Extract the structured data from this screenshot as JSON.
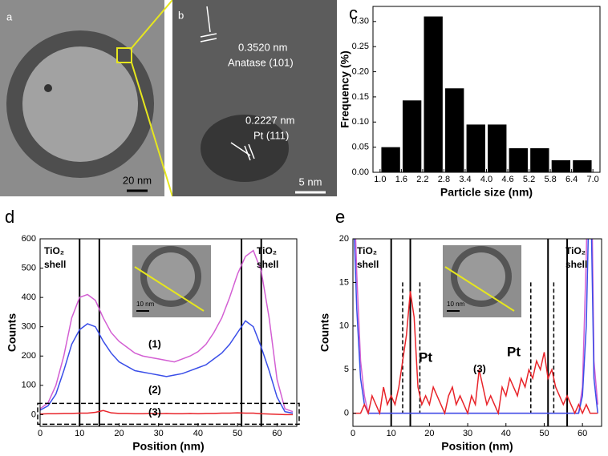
{
  "panels": {
    "a": {
      "label": "a",
      "scale_bar": "20 nm"
    },
    "b": {
      "label": "b",
      "spacing_1": "0.3520 nm",
      "plane_1": "Anatase (101)",
      "spacing_2": "0.2227 nm",
      "plane_2": "Pt (111)",
      "scale_bar": "5 nm"
    }
  },
  "chart_data": [
    {
      "type": "histogram",
      "label": "c",
      "x_label": "Particle size (nm)",
      "y_label": "Frequency (%)",
      "color": "#000000",
      "bins": [
        1.0,
        1.6,
        2.2,
        2.8,
        3.4,
        4.0,
        4.6,
        5.2,
        5.8,
        6.4,
        7.0
      ],
      "values": [
        0.05,
        0.143,
        0.31,
        0.167,
        0.095,
        0.095,
        0.048,
        0.048,
        0.024,
        0.024
      ],
      "xlim": [
        0.8,
        7.2
      ],
      "ylim": [
        0,
        0.33
      ],
      "xticks": [
        {
          "value": 1.0,
          "label": "1.0"
        },
        {
          "value": 1.6,
          "label": "1.6"
        },
        {
          "value": 2.2,
          "label": "2.2"
        },
        {
          "value": 2.8,
          "label": "2.8"
        },
        {
          "value": 3.4,
          "label": "3.4"
        },
        {
          "value": 4.0,
          "label": "4.0"
        },
        {
          "value": 4.6,
          "label": "4.6"
        },
        {
          "value": 5.2,
          "label": "5.2"
        },
        {
          "value": 5.8,
          "label": "5.8"
        },
        {
          "value": 6.4,
          "label": "6.4"
        },
        {
          "value": 7.0,
          "label": "7.0"
        }
      ],
      "yticks": [
        {
          "value": 0,
          "label": "0.00"
        },
        {
          "value": 0.05,
          "label": "0.05"
        },
        {
          "value": 0.1,
          "label": "0.10"
        },
        {
          "value": 0.15,
          "label": "0.15"
        },
        {
          "value": 0.2,
          "label": "0.20"
        },
        {
          "value": 0.25,
          "label": "0.25"
        },
        {
          "value": 0.3,
          "label": "0.30"
        }
      ]
    },
    {
      "type": "line",
      "label": "d",
      "x_label": "Position (nm)",
      "y_label": "Counts",
      "inset_scale": "10 nm",
      "annotations": [
        "TiO₂",
        "shell",
        "TiO₂",
        "shell"
      ],
      "vlines": [
        10,
        15,
        51,
        56
      ],
      "x": [
        0,
        2,
        4,
        6,
        8,
        10,
        12,
        14,
        16,
        18,
        20,
        22,
        24,
        26,
        28,
        30,
        32,
        34,
        36,
        38,
        40,
        42,
        44,
        46,
        48,
        50,
        52,
        54,
        56,
        58,
        60,
        62,
        64
      ],
      "series": [
        {
          "name": "(1)",
          "color": "#d35fd3",
          "values": [
            20,
            40,
            100,
            200,
            330,
            400,
            410,
            390,
            330,
            280,
            250,
            230,
            210,
            200,
            195,
            190,
            185,
            180,
            190,
            200,
            215,
            240,
            280,
            330,
            400,
            480,
            540,
            560,
            490,
            330,
            120,
            20,
            10
          ]
        },
        {
          "name": "(2)",
          "color": "#3a4ee8",
          "values": [
            15,
            30,
            70,
            150,
            240,
            290,
            310,
            300,
            250,
            210,
            180,
            165,
            150,
            145,
            140,
            135,
            130,
            135,
            140,
            150,
            160,
            170,
            190,
            210,
            240,
            280,
            320,
            300,
            230,
            150,
            60,
            10,
            5
          ]
        },
        {
          "name": "(3)",
          "color": "#e8242a",
          "values": [
            2,
            3,
            3,
            4,
            4,
            5,
            5,
            8,
            14,
            6,
            4,
            4,
            3,
            3,
            4,
            3,
            4,
            3,
            3,
            4,
            3,
            4,
            4,
            5,
            5,
            6,
            5,
            5,
            3,
            2,
            1,
            0,
            0
          ]
        }
      ],
      "xlim": [
        0,
        65
      ],
      "ylim": [
        -40,
        600
      ],
      "xticks": [
        0,
        10,
        20,
        30,
        40,
        50,
        60
      ],
      "yticks": [
        0,
        100,
        200,
        300,
        400,
        500,
        600
      ]
    },
    {
      "type": "line",
      "label": "e",
      "x_label": "Position (nm)",
      "y_label": "Counts",
      "inset_scale": "10 nm",
      "annotations": [
        "TiO₂",
        "shell",
        "Pt",
        "Pt",
        "TiO₂",
        "shell"
      ],
      "vlines": [
        10,
        15,
        51,
        56
      ],
      "dashed_vlines": [
        13,
        17.5,
        46.5,
        52.5
      ],
      "x": [
        0,
        1,
        2,
        3,
        4,
        5,
        6,
        7,
        8,
        9,
        10,
        11,
        12,
        13,
        14,
        15,
        16,
        17,
        18,
        19,
        20,
        21,
        22,
        23,
        24,
        25,
        26,
        27,
        28,
        29,
        30,
        31,
        32,
        33,
        34,
        35,
        36,
        37,
        38,
        39,
        40,
        41,
        42,
        43,
        44,
        45,
        46,
        47,
        48,
        49,
        50,
        51,
        52,
        53,
        54,
        55,
        56,
        57,
        58,
        59,
        60,
        61,
        62,
        63,
        64
      ],
      "series": [
        {
          "color": "#d35fd3",
          "values": [
            30,
            16,
            6,
            2,
            0,
            0,
            0,
            0,
            0,
            0,
            0,
            0,
            0,
            0,
            0,
            0,
            0,
            0,
            0,
            0,
            0,
            0,
            0,
            0,
            0,
            0,
            0,
            0,
            0,
            0,
            0,
            0,
            0,
            0,
            0,
            0,
            0,
            0,
            0,
            0,
            0,
            0,
            0,
            0,
            0,
            0,
            0,
            0,
            0,
            0,
            0,
            0,
            0,
            0,
            0,
            0,
            0,
            0,
            0,
            0,
            3,
            18,
            40,
            6,
            1
          ]
        },
        {
          "color": "#3a4ee8",
          "values": [
            25,
            12,
            4,
            1,
            0,
            0,
            0,
            0,
            0,
            0,
            0,
            0,
            0,
            0,
            0,
            0,
            0,
            0,
            0,
            0,
            0,
            0,
            0,
            0,
            0,
            0,
            0,
            0,
            0,
            0,
            0,
            0,
            0,
            0,
            0,
            0,
            0,
            0,
            0,
            0,
            0,
            0,
            0,
            0,
            0,
            0,
            0,
            0,
            0,
            0,
            0,
            0,
            0,
            0,
            0,
            0,
            0,
            0,
            0,
            0,
            2,
            10,
            30,
            4,
            0
          ]
        },
        {
          "name": "(3)",
          "color": "#e8242a",
          "values": [
            0,
            0,
            0,
            1,
            0,
            2,
            1,
            0,
            3,
            1,
            2,
            1,
            3,
            6,
            9,
            14,
            11,
            3,
            1,
            2,
            1,
            3,
            2,
            1,
            0,
            2,
            3,
            1,
            2,
            1,
            0,
            2,
            1,
            5,
            3,
            1,
            2,
            1,
            0,
            3,
            2,
            4,
            3,
            2,
            4,
            3,
            5,
            4,
            6,
            5,
            7,
            4,
            5,
            3,
            2,
            1,
            2,
            1,
            0,
            1,
            0,
            1,
            0,
            0,
            0
          ]
        }
      ],
      "xlim": [
        0,
        65
      ],
      "ylim": [
        -1.5,
        20
      ],
      "xticks": [
        0,
        10,
        20,
        30,
        40,
        50,
        60
      ],
      "yticks": [
        0,
        5,
        10,
        15,
        20
      ]
    }
  ]
}
